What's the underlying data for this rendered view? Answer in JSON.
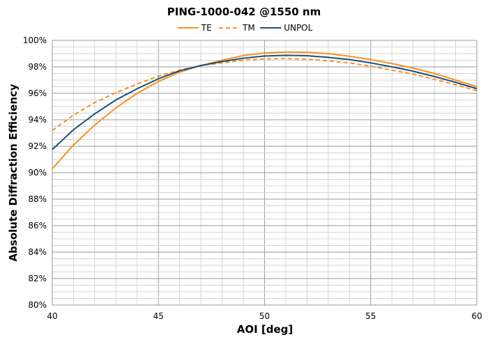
{
  "chart_data": {
    "type": "line",
    "title": "PING-1000-042 @1550 nm",
    "xlabel": "AOI [deg]",
    "ylabel": "Absolute Diffraction Efficiency",
    "xlim": [
      40,
      60
    ],
    "ylim": [
      80,
      100
    ],
    "x_ticks": [
      "40",
      "45",
      "50",
      "55",
      "60"
    ],
    "y_ticks": [
      "80%",
      "82%",
      "84%",
      "86%",
      "88%",
      "90%",
      "92%",
      "94%",
      "96%",
      "98%",
      "100%"
    ],
    "grid": true,
    "legend_position": "top",
    "x": [
      40,
      41,
      42,
      43,
      44,
      45,
      46,
      47,
      48,
      49,
      50,
      51,
      52,
      53,
      54,
      55,
      56,
      57,
      58,
      59,
      60
    ],
    "series": [
      {
        "name": "TE",
        "color": "#f5921e",
        "dash": "solid",
        "values": [
          90.3,
          92.1,
          93.6,
          94.9,
          96.0,
          96.9,
          97.6,
          98.1,
          98.5,
          98.85,
          99.05,
          99.12,
          99.1,
          99.0,
          98.8,
          98.55,
          98.25,
          97.9,
          97.5,
          97.0,
          96.5
        ]
      },
      {
        "name": "TM",
        "color": "#f5921e",
        "dash": "dashed",
        "values": [
          93.2,
          94.35,
          95.3,
          96.05,
          96.7,
          97.3,
          97.75,
          98.1,
          98.3,
          98.5,
          98.6,
          98.62,
          98.58,
          98.45,
          98.3,
          98.05,
          97.75,
          97.45,
          97.05,
          96.65,
          96.2
        ]
      },
      {
        "name": "UNPOL",
        "color": "#1f4e79",
        "dash": "solid",
        "values": [
          91.75,
          93.25,
          94.45,
          95.5,
          96.35,
          97.1,
          97.7,
          98.1,
          98.4,
          98.65,
          98.82,
          98.87,
          98.84,
          98.72,
          98.55,
          98.3,
          98.0,
          97.67,
          97.27,
          96.83,
          96.35
        ]
      }
    ]
  }
}
